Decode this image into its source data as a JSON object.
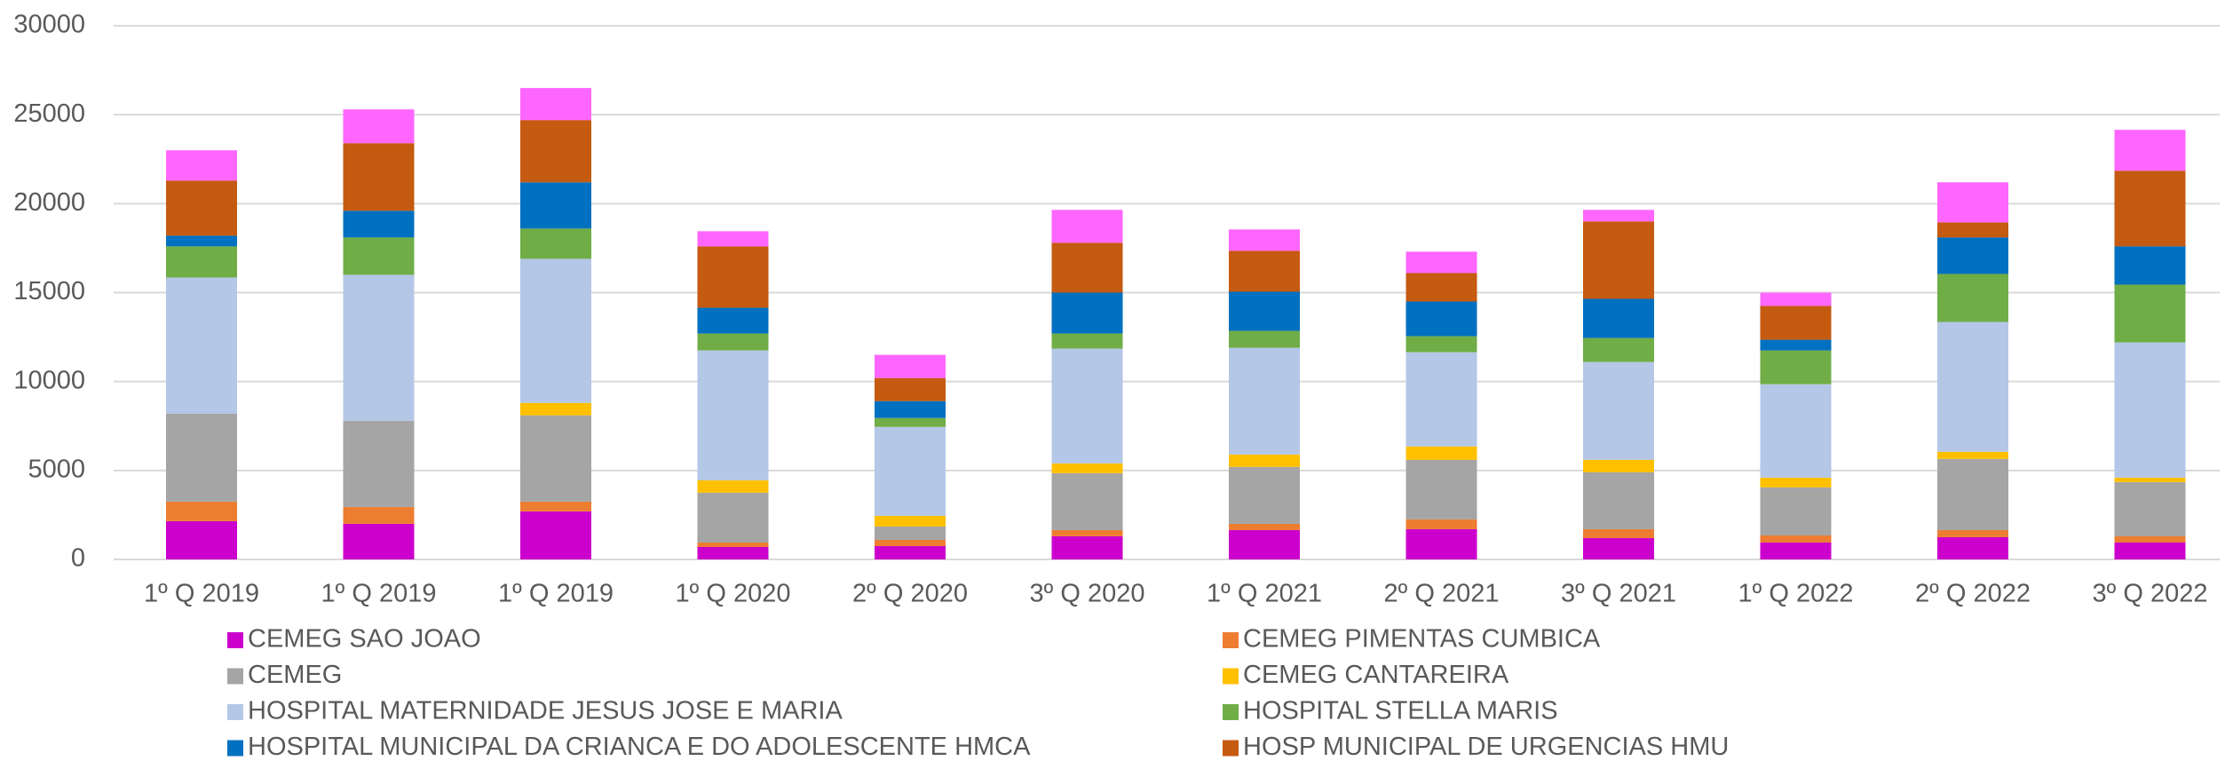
{
  "chart_data": {
    "type": "bar",
    "stacked": true,
    "categories": [
      "1º Q 2019",
      "1º Q 2019",
      "1º Q 2019",
      "1º Q 2020",
      "2º Q 2020",
      "3º Q 2020",
      "1º Q 2021",
      "2º Q 2021",
      "3º Q 2021",
      "1º Q 2022",
      "2º Q 2022",
      "3º Q 2022"
    ],
    "series": [
      {
        "name": "CEMEG SAO JOAO",
        "color": "#cc00cc",
        "values": [
          2150,
          2000,
          2700,
          700,
          750,
          1300,
          1650,
          1700,
          1200,
          950,
          1250,
          950
        ]
      },
      {
        "name": "CEMEG PIMENTAS CUMBICA",
        "color": "#ed7d31",
        "values": [
          1100,
          950,
          550,
          250,
          350,
          350,
          350,
          550,
          500,
          400,
          400,
          350
        ]
      },
      {
        "name": "CEMEG",
        "color": "#a5a5a5",
        "values": [
          4950,
          4850,
          4850,
          2800,
          750,
          3200,
          3200,
          3350,
          3200,
          2700,
          4000,
          3050
        ]
      },
      {
        "name": "CEMEG CANTAREIRA",
        "color": "#ffc000",
        "values": [
          0,
          0,
          700,
          700,
          600,
          550,
          700,
          750,
          700,
          550,
          400,
          250
        ]
      },
      {
        "name": "HOSPITAL MATERNIDADE JESUS JOSE E MARIA",
        "color": "#b4c7e7",
        "values": [
          7650,
          8200,
          8100,
          7300,
          5000,
          6450,
          6000,
          5300,
          5500,
          5250,
          7300,
          7600
        ]
      },
      {
        "name": "HOSPITAL STELLA MARIS",
        "color": "#70ad47",
        "values": [
          1750,
          2100,
          1700,
          950,
          500,
          850,
          950,
          900,
          1350,
          1900,
          2700,
          3250
        ]
      },
      {
        "name": "HOSPITAL MUNICIPAL DA CRIANCA E DO ADOLESCENTE HMCA",
        "color": "#0070c0",
        "values": [
          600,
          1500,
          2600,
          1450,
          950,
          2300,
          2200,
          1950,
          2200,
          600,
          2050,
          2150
        ]
      },
      {
        "name": "HOSP MUNICIPAL DE URGENCIAS HMU",
        "color": "#c55a11",
        "values": [
          3100,
          3800,
          3500,
          3450,
          1300,
          2800,
          2300,
          1600,
          4350,
          1900,
          850,
          4250
        ]
      },
      {
        "name": null,
        "color": "#ff66ff",
        "values": [
          1700,
          1900,
          1800,
          850,
          1300,
          1850,
          1200,
          1200,
          650,
          750,
          2250,
          2300
        ]
      }
    ],
    "ylim": [
      0,
      30000
    ],
    "yticks": [
      0,
      5000,
      10000,
      15000,
      20000,
      25000,
      30000
    ],
    "grid": true,
    "legend": "bottom"
  }
}
